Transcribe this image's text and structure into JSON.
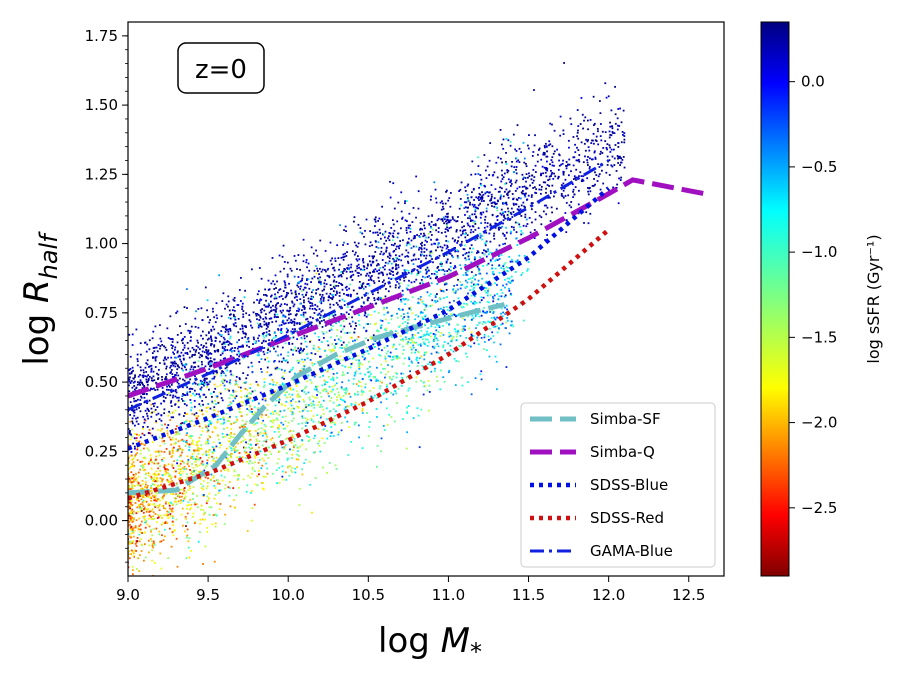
{
  "chart_data": {
    "type": "scatter",
    "annotation": "z=0",
    "xlabel": "log M_*",
    "ylabel": "log R_half",
    "xlim": [
      9.0,
      12.72
    ],
    "ylim": [
      -0.2,
      1.8
    ],
    "xticks": [
      "9.0",
      "9.5",
      "10.0",
      "10.5",
      "11.0",
      "11.5",
      "12.0",
      "12.5"
    ],
    "xtick_values": [
      9.0,
      9.5,
      10.0,
      10.5,
      11.0,
      11.5,
      12.0,
      12.5
    ],
    "yticks": [
      "0.00",
      "0.25",
      "0.50",
      "0.75",
      "1.00",
      "1.25",
      "1.50",
      "1.75"
    ],
    "ytick_values": [
      0.0,
      0.25,
      0.5,
      0.75,
      1.0,
      1.25,
      1.5,
      1.75
    ],
    "colorbar": {
      "label": "log sSFR (Gyr⁻¹)",
      "range": [
        -2.9,
        0.35
      ],
      "colormap": "jet_r",
      "ticks": [
        "0.0",
        "−0.5",
        "−1.0",
        "−1.5",
        "−2.0",
        "−2.5"
      ],
      "tick_values": [
        0.0,
        -0.5,
        -1.0,
        -1.5,
        -2.0,
        -2.5
      ]
    },
    "series": [
      {
        "name": "Simba-SF",
        "color": "#6fbfc4",
        "style": "dashed",
        "x": [
          9.0,
          9.3,
          9.55,
          9.7,
          9.85,
          10.05,
          10.3,
          10.55,
          10.8,
          11.0,
          11.2,
          11.35
        ],
        "y": [
          0.1,
          0.11,
          0.2,
          0.31,
          0.41,
          0.52,
          0.6,
          0.66,
          0.7,
          0.73,
          0.76,
          0.78
        ]
      },
      {
        "name": "Simba-Q",
        "color": "#a010c0",
        "style": "dashed",
        "x": [
          9.0,
          9.5,
          10.0,
          10.5,
          11.0,
          11.5,
          12.0,
          12.15,
          12.6
        ],
        "y": [
          0.45,
          0.55,
          0.66,
          0.77,
          0.88,
          1.02,
          1.18,
          1.23,
          1.18
        ]
      },
      {
        "name": "SDSS-Blue",
        "color": "#0010e0",
        "style": "dotted",
        "x": [
          9.0,
          9.5,
          10.0,
          10.5,
          11.0,
          11.5,
          12.0
        ],
        "y": [
          0.26,
          0.37,
          0.49,
          0.62,
          0.76,
          0.95,
          1.2
        ]
      },
      {
        "name": "SDSS-Red",
        "color": "#d01010",
        "style": "dotted",
        "x": [
          9.0,
          9.5,
          10.0,
          10.5,
          11.0,
          11.5,
          12.0
        ],
        "y": [
          0.08,
          0.17,
          0.29,
          0.43,
          0.6,
          0.8,
          1.05
        ]
      },
      {
        "name": "GAMA-Blue",
        "color": "#1020e0",
        "style": "dashdot",
        "x": [
          9.0,
          9.5,
          10.0,
          10.5,
          11.0,
          11.5,
          12.0
        ],
        "y": [
          0.4,
          0.53,
          0.67,
          0.82,
          0.97,
          1.13,
          1.3
        ]
      }
    ],
    "legend_position": "lower-right"
  }
}
